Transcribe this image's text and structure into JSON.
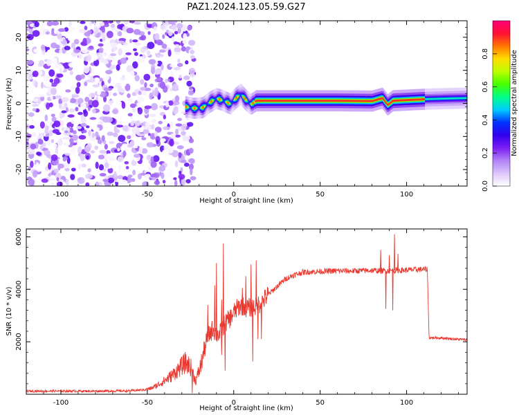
{
  "title": "PAZ1.2024.123.05.59.G27",
  "chart_data": [
    {
      "type": "heatmap",
      "xlabel": "Height of straight line (km)",
      "ylabel": "Frequency (Hz)",
      "xlim": [
        -120,
        135
      ],
      "ylim": [
        -25,
        25
      ],
      "x_ticks": [
        -100,
        -50,
        0,
        50,
        100
      ],
      "y_ticks": [
        -20,
        -10,
        0,
        10,
        20
      ],
      "colorbar": {
        "label": "Normalized spectral amplitude",
        "range": [
          0,
          1
        ],
        "ticks": [
          0.0,
          0.2,
          0.4,
          0.6,
          0.8
        ],
        "colors": [
          "#ffffff",
          "#dcc6fb",
          "#b183f6",
          "#7b1ef2",
          "#3300ee",
          "#0033ff",
          "#00ccff",
          "#00ff88",
          "#44ff00",
          "#bbff00",
          "#ffdd00",
          "#ff7700",
          "#ff1133",
          "#ff0077"
        ]
      },
      "noise_region_x": [
        -120,
        -23
      ],
      "ridge": [
        {
          "x": -28,
          "y": -1.0
        },
        {
          "x": -23,
          "y": -1.5
        },
        {
          "x": -18,
          "y": -1.3
        },
        {
          "x": -14,
          "y": 0.3
        },
        {
          "x": -10,
          "y": 1.5
        },
        {
          "x": -6,
          "y": 0.8
        },
        {
          "x": -2,
          "y": -0.2
        },
        {
          "x": 1,
          "y": 1.5
        },
        {
          "x": 4,
          "y": 2.8
        },
        {
          "x": 7,
          "y": 1.0
        },
        {
          "x": 10,
          "y": -0.3
        },
        {
          "x": 13,
          "y": 0.8
        },
        {
          "x": 20,
          "y": 0.8
        },
        {
          "x": 40,
          "y": 0.8
        },
        {
          "x": 60,
          "y": 0.8
        },
        {
          "x": 80,
          "y": 0.7
        },
        {
          "x": 86,
          "y": 1.6
        },
        {
          "x": 89,
          "y": -0.5
        },
        {
          "x": 92,
          "y": 0.8
        },
        {
          "x": 100,
          "y": 1.0
        },
        {
          "x": 112,
          "y": 1.3
        },
        {
          "x": 125,
          "y": 1.5
        },
        {
          "x": 135,
          "y": 1.6
        }
      ]
    },
    {
      "type": "line",
      "xlabel": "Height of straight line (km)",
      "ylabel": "SNR (10 * v/v)",
      "xlim": [
        -120,
        135
      ],
      "ylim": [
        0,
        6300
      ],
      "x_ticks": [
        -100,
        -50,
        0,
        50,
        100
      ],
      "y_ticks": [
        2000,
        4000,
        6000
      ],
      "color": "#e8382f",
      "series": [
        {
          "points": [
            [
              -120,
              120
            ],
            [
              -100,
              120
            ],
            [
              -80,
              120
            ],
            [
              -60,
              130
            ],
            [
              -52,
              170
            ],
            [
              -48,
              220
            ],
            [
              -44,
              350
            ],
            [
              -40,
              520
            ],
            [
              -36,
              700
            ],
            [
              -32,
              950
            ],
            [
              -28,
              1200
            ],
            [
              -25,
              1050
            ],
            [
              -22,
              500
            ],
            [
              -19,
              1100
            ],
            [
              -17,
              1700
            ],
            [
              -15,
              2200
            ],
            [
              -12,
              2500
            ],
            [
              -10,
              2300
            ],
            [
              -8,
              2300
            ],
            [
              -5,
              2700
            ],
            [
              -2,
              2900
            ],
            [
              1,
              3200
            ],
            [
              4,
              3400
            ],
            [
              7,
              3300
            ],
            [
              10,
              3300
            ],
            [
              13,
              3350
            ],
            [
              16,
              3500
            ],
            [
              20,
              3800
            ],
            [
              25,
              4100
            ],
            [
              30,
              4400
            ],
            [
              35,
              4550
            ],
            [
              40,
              4650
            ],
            [
              50,
              4680
            ],
            [
              60,
              4700
            ],
            [
              70,
              4700
            ],
            [
              80,
              4720
            ],
            [
              88,
              4700
            ],
            [
              95,
              4720
            ],
            [
              105,
              4750
            ],
            [
              112,
              4760
            ],
            [
              113,
              2150
            ],
            [
              120,
              2150
            ],
            [
              128,
              2100
            ],
            [
              135,
              2080
            ]
          ],
          "spikes": [
            [
              -15,
              3400
            ],
            [
              -12,
              2500
            ],
            [
              -11,
              4150
            ],
            [
              -10,
              5000
            ],
            [
              -7,
              3600
            ],
            [
              -6,
              5750
            ],
            [
              5,
              4050
            ],
            [
              7,
              4500
            ],
            [
              10,
              4950
            ],
            [
              13,
              5100
            ],
            [
              85,
              5500
            ],
            [
              88,
              3250
            ],
            [
              90,
              5300
            ],
            [
              93,
              6100
            ],
            [
              95,
              5350
            ]
          ],
          "dips": [
            [
              -24,
              40
            ],
            [
              -19,
              1150
            ],
            [
              -7,
              1500
            ],
            [
              -5,
              900
            ],
            [
              11,
              1250
            ],
            [
              14,
              2100
            ],
            [
              16,
              2100
            ],
            [
              92,
              3200
            ]
          ]
        }
      ]
    }
  ]
}
